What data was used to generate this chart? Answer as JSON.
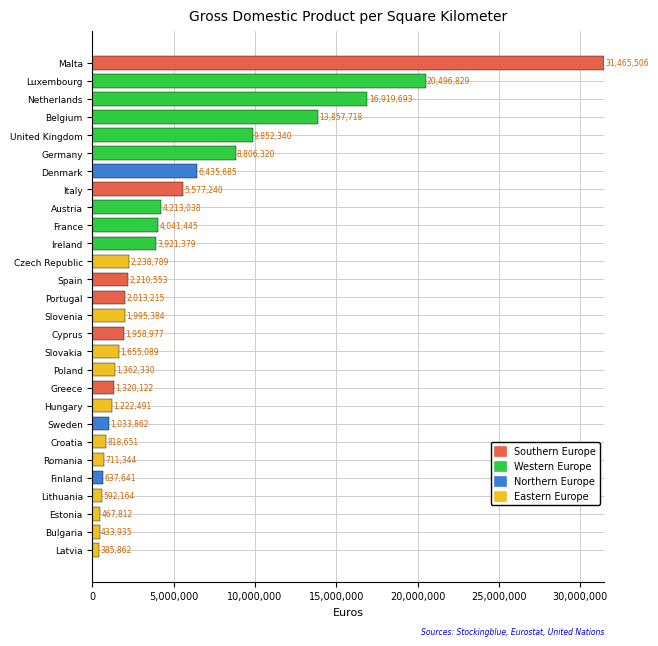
{
  "title": "Gross Domestic Product per Square Kilometer",
  "xlabel": "Euros",
  "source_text": "Sources: Stockingblue, Eurostat, United Nations",
  "countries": [
    "Malta",
    "Luxembourg",
    "Netherlands",
    "Belgium",
    "United Kingdom",
    "Germany",
    "Denmark",
    "Italy",
    "Austria",
    "France",
    "Ireland",
    "Czech Republic",
    "Spain",
    "Portugal",
    "Slovenia",
    "Cyprus",
    "Slovakia",
    "Poland",
    "Greece",
    "Hungary",
    "Sweden",
    "Croatia",
    "Romania",
    "Finland",
    "Lithuania",
    "Estonia",
    "Bulgaria",
    "Latvia"
  ],
  "values": [
    31465506,
    20496829,
    16919693,
    13857718,
    9852340,
    8806320,
    6435685,
    5577240,
    4213038,
    4041445,
    3921379,
    2238789,
    2210553,
    2013215,
    1995384,
    1958977,
    1655089,
    1362330,
    1320122,
    1222491,
    1033862,
    818651,
    711344,
    637641,
    592164,
    467812,
    433935,
    385862
  ],
  "regions": [
    "Southern Europe",
    "Western Europe",
    "Western Europe",
    "Western Europe",
    "Western Europe",
    "Western Europe",
    "Northern Europe",
    "Southern Europe",
    "Western Europe",
    "Western Europe",
    "Western Europe",
    "Eastern Europe",
    "Southern Europe",
    "Southern Europe",
    "Eastern Europe",
    "Southern Europe",
    "Eastern Europe",
    "Eastern Europe",
    "Southern Europe",
    "Eastern Europe",
    "Northern Europe",
    "Eastern Europe",
    "Eastern Europe",
    "Northern Europe",
    "Eastern Europe",
    "Eastern Europe",
    "Eastern Europe",
    "Eastern Europe"
  ],
  "region_colors": {
    "Southern Europe": "#E8614B",
    "Western Europe": "#2ECC40",
    "Northern Europe": "#3A7FD5",
    "Eastern Europe": "#F0C020"
  },
  "xlim": [
    0,
    31500000
  ],
  "background_color": "#FFFFFF",
  "grid_color": "#CCCCCC",
  "bar_value_color": "#CC6600",
  "legend_order": [
    "Southern Europe",
    "Western Europe",
    "Northern Europe",
    "Eastern Europe"
  ]
}
